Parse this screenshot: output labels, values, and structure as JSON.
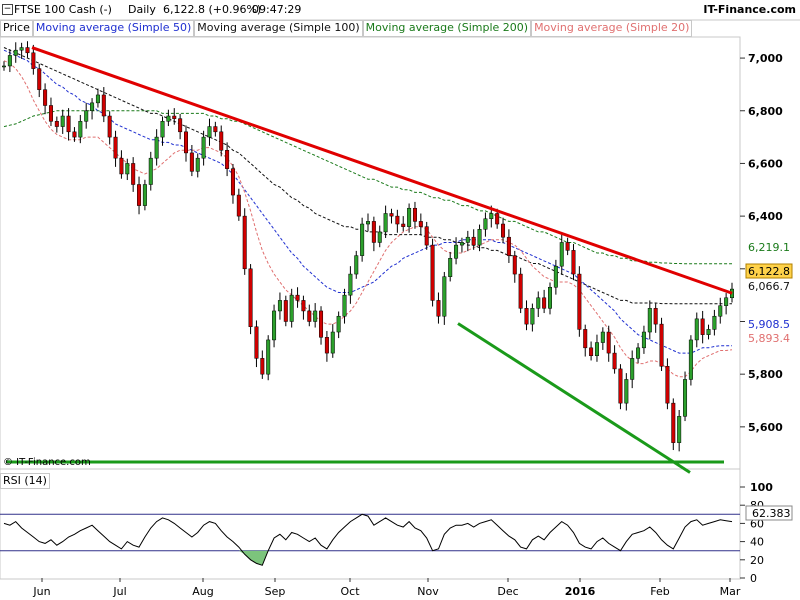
{
  "header": {
    "collapse_icon": "minus-box-icon",
    "instrument": "FTSE 100 Cash (-)",
    "period": "Daily",
    "last": "6,122.8 (+0.96%)",
    "time": "09:47:29",
    "brand": "IT-Finance.com"
  },
  "legend": [
    "Price",
    "Moving average (Simple 50)",
    "Moving average (Simple 100)",
    "Moving average (Simple 200)",
    "Moving average (Simple 20)"
  ],
  "watermark": "© IT-Finance.com",
  "rsi_label": "RSI (14)",
  "colors": {
    "up": "#2ca02c",
    "down": "#d00000",
    "sma20": "#e07070",
    "sma50": "#1f2fd0",
    "sma100": "#111111",
    "sma200": "#1a7a1a",
    "resistance": "#e00000",
    "support": "#1a9a1a",
    "highlight": "#ffd24a"
  },
  "chart_data": [
    {
      "type": "line",
      "title": "FTSE 100 Cash (-) Daily",
      "y_axis": {
        "ticks": [
          "7,000",
          "6,800",
          "6,600",
          "6,400",
          "6,200",
          "6,000",
          "5,800",
          "5,600"
        ],
        "ylim": [
          5440,
          7080
        ]
      },
      "x_axis": {
        "ticks": [
          "Jun",
          "Jul",
          "Aug",
          "Sep",
          "Oct",
          "Nov",
          "Dec",
          "2016",
          "Feb",
          "Mar"
        ]
      },
      "series": [
        {
          "name": "Price",
          "close": [
            6970,
            7010,
            7030,
            7040,
            7020,
            6960,
            6880,
            6820,
            6760,
            6740,
            6780,
            6720,
            6700,
            6760,
            6800,
            6830,
            6860,
            6780,
            6700,
            6620,
            6560,
            6600,
            6520,
            6440,
            6520,
            6620,
            6700,
            6760,
            6780,
            6770,
            6720,
            6640,
            6570,
            6620,
            6700,
            6740,
            6720,
            6650,
            6580,
            6480,
            6400,
            6200,
            5980,
            5860,
            5800,
            5930,
            6040,
            6080,
            6000,
            6100,
            6080,
            6040,
            6000,
            6040,
            5940,
            5880,
            5960,
            6020,
            6100,
            6180,
            6250,
            6370,
            6380,
            6300,
            6340,
            6410,
            6400,
            6370,
            6360,
            6430,
            6380,
            6360,
            6290,
            6080,
            6020,
            6170,
            6240,
            6290,
            6300,
            6320,
            6290,
            6350,
            6390,
            6410,
            6370,
            6320,
            6250,
            6180,
            6050,
            5990,
            6050,
            6090,
            6050,
            6130,
            6210,
            6300,
            6270,
            6180,
            5970,
            5900,
            5870,
            5920,
            5960,
            5880,
            5820,
            5690,
            5780,
            5860,
            5900,
            5960,
            6050,
            5990,
            5830,
            5690,
            5540,
            5640,
            5780,
            5930,
            6010,
            5950,
            5970,
            6020,
            6060,
            6090,
            6123
          ]
        },
        {
          "name": "Moving average (Simple 20)",
          "values": [
            6990,
            6980,
            6960,
            6930,
            6890,
            6840,
            6800,
            6760,
            6730,
            6710,
            6700,
            6690,
            6690,
            6690,
            6700,
            6700,
            6700,
            6680,
            6660,
            6640,
            6620,
            6600,
            6580,
            6570,
            6560,
            6570,
            6580,
            6600,
            6620,
            6640,
            6650,
            6650,
            6650,
            6650,
            6660,
            6660,
            6650,
            6640,
            6620,
            6590,
            6550,
            6490,
            6420,
            6340,
            6270,
            6220,
            6180,
            6150,
            6120,
            6100,
            6080,
            6060,
            6040,
            6020,
            6000,
            5990,
            5990,
            6000,
            6020,
            6040,
            6070,
            6110,
            6150,
            6190,
            6230,
            6270,
            6300,
            6320,
            6340,
            6350,
            6360,
            6360,
            6350,
            6320,
            6290,
            6270,
            6260,
            6260,
            6260,
            6270,
            6280,
            6290,
            6300,
            6310,
            6310,
            6310,
            6300,
            6290,
            6270,
            6240,
            6210,
            6190,
            6170,
            6160,
            6150,
            6150,
            6150,
            6140,
            6120,
            6090,
            6060,
            6030,
            6000,
            5970,
            5940,
            5900,
            5870,
            5850,
            5840,
            5840,
            5850,
            5850,
            5840,
            5820,
            5800,
            5790,
            5790,
            5810,
            5840,
            5860,
            5870,
            5880,
            5890,
            5890,
            5893
          ]
        },
        {
          "name": "Moving average (Simple 50)",
          "values": [
            7030,
            7020,
            7010,
            7000,
            6990,
            6970,
            6960,
            6940,
            6920,
            6900,
            6890,
            6870,
            6860,
            6840,
            6830,
            6820,
            6800,
            6790,
            6770,
            6750,
            6740,
            6730,
            6720,
            6710,
            6700,
            6690,
            6690,
            6680,
            6680,
            6670,
            6670,
            6660,
            6650,
            6640,
            6630,
            6620,
            6610,
            6600,
            6580,
            6560,
            6530,
            6500,
            6470,
            6440,
            6410,
            6380,
            6350,
            6320,
            6290,
            6260,
            6240,
            6210,
            6190,
            6170,
            6150,
            6130,
            6120,
            6110,
            6110,
            6110,
            6120,
            6130,
            6140,
            6150,
            6170,
            6190,
            6210,
            6220,
            6240,
            6250,
            6260,
            6270,
            6280,
            6290,
            6290,
            6300,
            6300,
            6300,
            6310,
            6310,
            6310,
            6310,
            6310,
            6310,
            6300,
            6300,
            6290,
            6280,
            6270,
            6260,
            6250,
            6240,
            6230,
            6220,
            6210,
            6200,
            6190,
            6180,
            6160,
            6140,
            6120,
            6100,
            6080,
            6060,
            6040,
            6010,
            5990,
            5970,
            5950,
            5940,
            5930,
            5920,
            5910,
            5900,
            5890,
            5880,
            5880,
            5880,
            5890,
            5900,
            5900,
            5905,
            5908,
            5908,
            5908
          ]
        },
        {
          "name": "Moving average (Simple 100)",
          "values": [
            7040,
            7030,
            7020,
            7010,
            7000,
            6990,
            6980,
            6970,
            6960,
            6950,
            6940,
            6930,
            6920,
            6910,
            6900,
            6890,
            6880,
            6870,
            6860,
            6850,
            6840,
            6830,
            6820,
            6810,
            6800,
            6790,
            6790,
            6780,
            6770,
            6760,
            6750,
            6740,
            6730,
            6720,
            6710,
            6700,
            6690,
            6680,
            6670,
            6650,
            6640,
            6620,
            6600,
            6580,
            6560,
            6540,
            6520,
            6510,
            6490,
            6470,
            6460,
            6440,
            6430,
            6410,
            6400,
            6390,
            6380,
            6370,
            6360,
            6360,
            6350,
            6350,
            6340,
            6340,
            6340,
            6330,
            6330,
            6330,
            6330,
            6330,
            6330,
            6330,
            6320,
            6320,
            6320,
            6310,
            6310,
            6300,
            6300,
            6290,
            6290,
            6280,
            6280,
            6270,
            6270,
            6260,
            6250,
            6250,
            6240,
            6230,
            6220,
            6220,
            6210,
            6200,
            6190,
            6180,
            6170,
            6160,
            6150,
            6140,
            6130,
            6120,
            6110,
            6100,
            6090,
            6080,
            6080,
            6070,
            6070,
            6070,
            6070,
            6070,
            6068,
            6068,
            6067,
            6067,
            6067,
            6067,
            6067,
            6067,
            6067,
            6067,
            6067,
            6067,
            6067
          ]
        },
        {
          "name": "Moving average (Simple 200)",
          "values": [
            6740,
            6745,
            6750,
            6760,
            6770,
            6780,
            6785,
            6790,
            6795,
            6800,
            6800,
            6800,
            6800,
            6800,
            6800,
            6800,
            6800,
            6800,
            6800,
            6800,
            6800,
            6800,
            6800,
            6800,
            6800,
            6800,
            6800,
            6790,
            6790,
            6790,
            6790,
            6790,
            6790,
            6790,
            6790,
            6780,
            6780,
            6770,
            6770,
            6760,
            6760,
            6750,
            6740,
            6730,
            6720,
            6710,
            6700,
            6690,
            6680,
            6670,
            6660,
            6650,
            6640,
            6630,
            6620,
            6610,
            6600,
            6590,
            6580,
            6570,
            6560,
            6550,
            6540,
            6540,
            6530,
            6520,
            6510,
            6510,
            6500,
            6500,
            6490,
            6490,
            6480,
            6470,
            6470,
            6460,
            6460,
            6450,
            6440,
            6440,
            6430,
            6420,
            6420,
            6410,
            6400,
            6390,
            6380,
            6380,
            6370,
            6360,
            6350,
            6340,
            6340,
            6330,
            6320,
            6310,
            6300,
            6300,
            6290,
            6280,
            6270,
            6260,
            6260,
            6250,
            6250,
            6240,
            6240,
            6230,
            6230,
            6230,
            6225,
            6225,
            6222,
            6222,
            6220,
            6220,
            6219,
            6219,
            6219,
            6219,
            6219,
            6219,
            6219,
            6219,
            6219
          ]
        },
        {
          "name": "Resistance trendline",
          "points": [
            [
              0,
              7040
            ],
            [
              123,
              6130
            ]
          ]
        },
        {
          "name": "Support trendline",
          "points": [
            [
              84,
              6000
            ],
            [
              116,
              5480
            ]
          ]
        },
        {
          "name": "Horizontal line",
          "value": 5455
        }
      ],
      "last_values": [
        {
          "series": "Moving average (Simple 200)",
          "label": "6,219.1"
        },
        {
          "series": "Price",
          "label": "6,122.8"
        },
        {
          "series": "Moving average (Simple 100)",
          "label": "6,066.7"
        },
        {
          "series": "Moving average (Simple 50)",
          "label": "5,908.5"
        },
        {
          "series": "Moving average (Simple 20)",
          "label": "5,893.4"
        }
      ]
    },
    {
      "type": "line",
      "title": "RSI (14)",
      "y_axis": {
        "ticks": [
          "100",
          "80",
          "60",
          "40",
          "20",
          "0"
        ],
        "ylim": [
          0,
          100
        ]
      },
      "levels": [
        70,
        30
      ],
      "last_value": "62.383",
      "series": [
        {
          "name": "RSI (14)",
          "values": [
            60,
            58,
            62,
            55,
            50,
            45,
            40,
            38,
            42,
            36,
            40,
            45,
            48,
            52,
            55,
            58,
            52,
            46,
            40,
            36,
            32,
            40,
            36,
            34,
            45,
            55,
            62,
            66,
            64,
            60,
            55,
            50,
            45,
            50,
            58,
            62,
            60,
            52,
            45,
            40,
            34,
            26,
            20,
            16,
            14,
            30,
            44,
            48,
            42,
            50,
            48,
            44,
            40,
            44,
            36,
            32,
            42,
            50,
            56,
            62,
            66,
            70,
            68,
            58,
            62,
            66,
            62,
            58,
            56,
            62,
            55,
            52,
            44,
            30,
            32,
            48,
            55,
            58,
            58,
            60,
            56,
            60,
            62,
            64,
            58,
            52,
            46,
            42,
            34,
            32,
            42,
            46,
            42,
            50,
            56,
            62,
            58,
            50,
            38,
            34,
            32,
            40,
            44,
            38,
            34,
            30,
            40,
            48,
            50,
            52,
            56,
            50,
            42,
            36,
            32,
            44,
            56,
            62,
            64,
            58,
            60,
            62,
            64,
            63,
            62
          ]
        }
      ]
    }
  ]
}
